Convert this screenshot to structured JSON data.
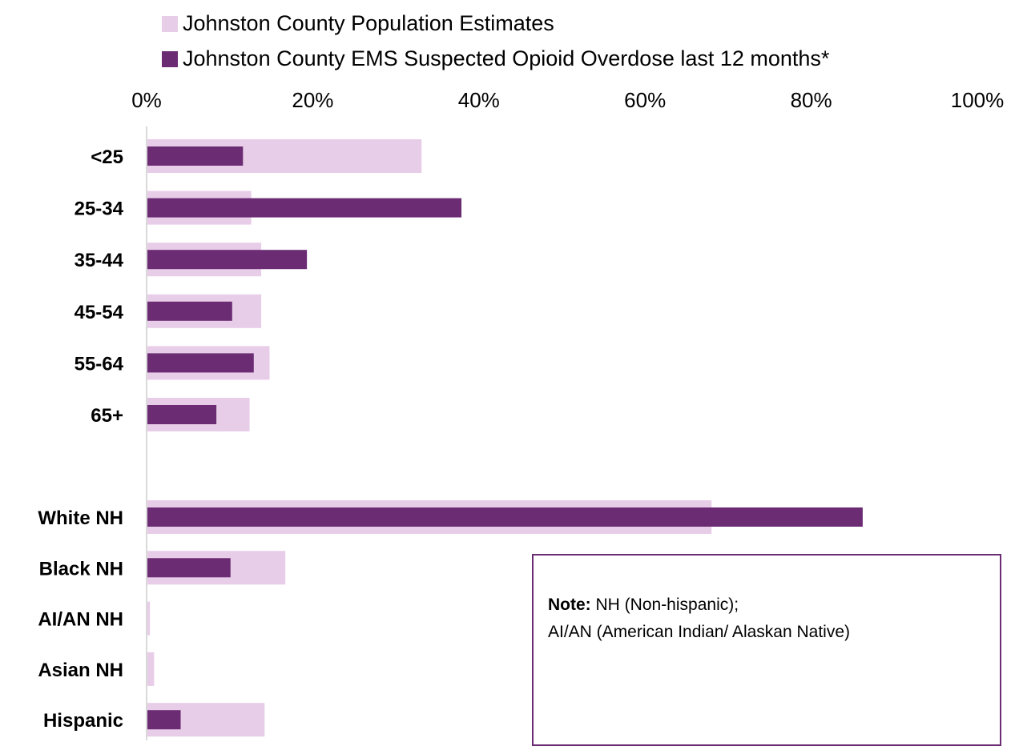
{
  "colors": {
    "population": "#e8cde8",
    "ems": "#6b2c74",
    "axis": "#d9d9d9",
    "note_border": "#6b2c74"
  },
  "legend": {
    "population": "Johnston County Population Estimates",
    "ems": "Johnston County EMS Suspected Opioid Overdose last 12 months*"
  },
  "note": {
    "label": "Note:",
    "line1": " NH (Non-hispanic);",
    "line2": "AI/AN (American Indian/ Alaskan Native)"
  },
  "chart_data": {
    "type": "bar",
    "orientation": "horizontal",
    "xlim": [
      0,
      100
    ],
    "x_ticks": [
      "0%",
      "20%",
      "40%",
      "60%",
      "80%",
      "100%"
    ],
    "x_axis_position": "top",
    "grid": false,
    "legend_position": "top",
    "groups": [
      {
        "categories": [
          "<25",
          "25-34",
          "35-44",
          "45-54",
          "55-64",
          "65+"
        ]
      },
      {
        "categories": [
          "White NH",
          "Black NH",
          "AI/AN NH",
          "Asian NH",
          "Hispanic"
        ]
      }
    ],
    "categories": [
      "<25",
      "25-34",
      "35-44",
      "45-54",
      "55-64",
      "65+",
      "White NH",
      "Black NH",
      "AI/AN NH",
      "Asian NH",
      "Hispanic"
    ],
    "series": [
      {
        "name": "Johnston County Population Estimates",
        "values": [
          33.1,
          12.6,
          13.8,
          13.8,
          14.8,
          12.4,
          68.0,
          16.7,
          0.4,
          0.9,
          14.2
        ]
      },
      {
        "name": "Johnston County EMS Suspected Opioid Overdose last 12 months*",
        "values": [
          11.6,
          37.9,
          19.3,
          10.3,
          12.9,
          8.4,
          86.2,
          10.1,
          0.0,
          0.0,
          4.1
        ]
      }
    ]
  }
}
